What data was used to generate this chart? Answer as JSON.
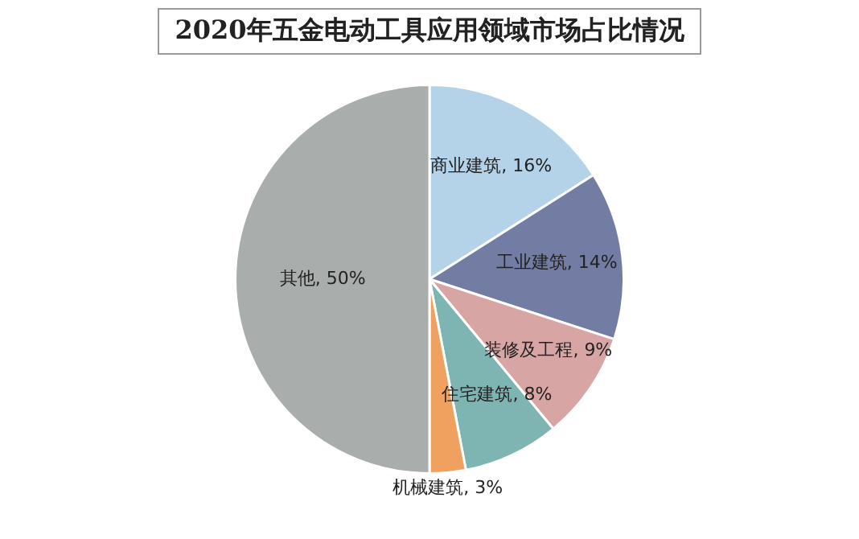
{
  "chart_data": {
    "type": "pie",
    "title": "2020年五金电动工具应用领域市场占比情况",
    "categories": [
      "商业建筑",
      "工业建筑",
      "装修及工程",
      "住宅建筑",
      "机械建筑",
      "其他"
    ],
    "values": [
      16,
      14,
      9,
      8,
      3,
      50
    ],
    "colors": [
      "#b4d3e8",
      "#737ca3",
      "#d8a5a5",
      "#7eb4b1",
      "#f0a15f",
      "#a9adac"
    ],
    "value_labels": [
      "16%",
      "14%",
      "9%",
      "8%",
      "3%",
      "50%"
    ],
    "legend": false
  }
}
